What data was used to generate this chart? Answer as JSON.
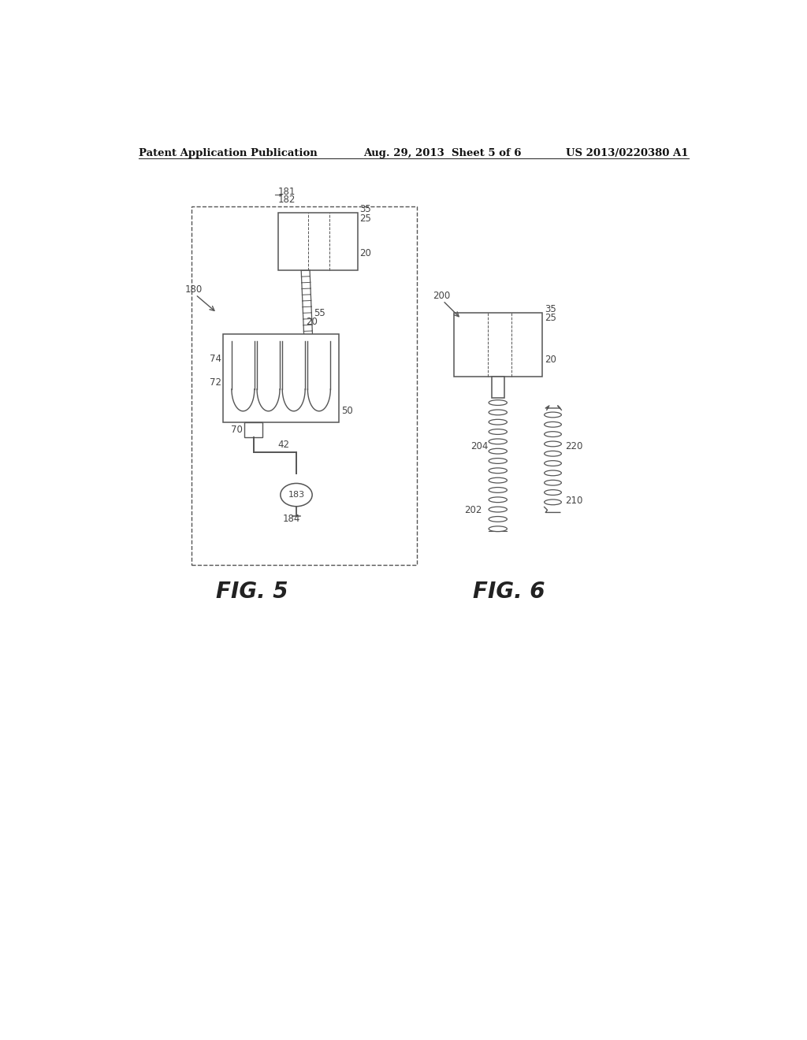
{
  "background_color": "#ffffff",
  "header_left": "Patent Application Publication",
  "header_center": "Aug. 29, 2013  Sheet 5 of 6",
  "header_right": "US 2013/0220380 A1",
  "fig5_label": "FIG. 5",
  "fig6_label": "FIG. 6",
  "line_color": "#555555",
  "label_color": "#444444"
}
